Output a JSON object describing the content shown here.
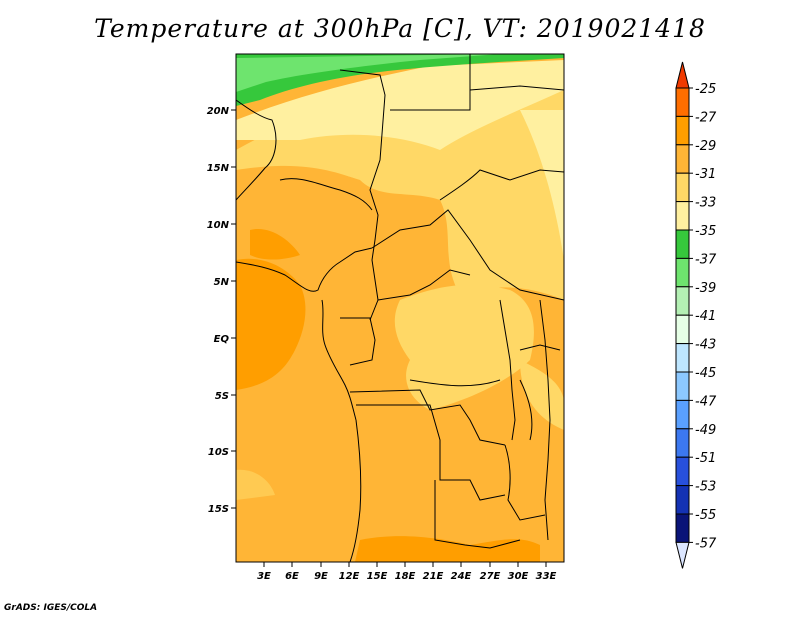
{
  "title": "Temperature at 300hPa [C], VT: 2019021418",
  "credit": "GrADS: IGES/COLA",
  "map": {
    "lat_labels": [
      "20N",
      "15N",
      "10N",
      "5N",
      "EQ",
      "5S",
      "10S",
      "15S"
    ],
    "lon_labels": [
      "3E",
      "6E",
      "9E",
      "12E",
      "15E",
      "18E",
      "21E",
      "24E",
      "27E",
      "30E",
      "33E"
    ]
  },
  "colorbar": {
    "labels": [
      "-25",
      "-27",
      "-29",
      "-31",
      "-33",
      "-35",
      "-37",
      "-39",
      "-41",
      "-43",
      "-45",
      "-47",
      "-49",
      "-51",
      "-53",
      "-55",
      "-57"
    ],
    "colors": [
      "#f03a00",
      "#ff6e00",
      "#ff9e00",
      "#ffb536",
      "#ffd866",
      "#fff0a0",
      "#36c83c",
      "#6ee46e",
      "#b4f0b4",
      "#e6ffe6",
      "#bee6ff",
      "#8cc8ff",
      "#5aa0ff",
      "#3c78f0",
      "#2850dc",
      "#1432b4",
      "#0a1478",
      "#dce6ff"
    ]
  }
}
